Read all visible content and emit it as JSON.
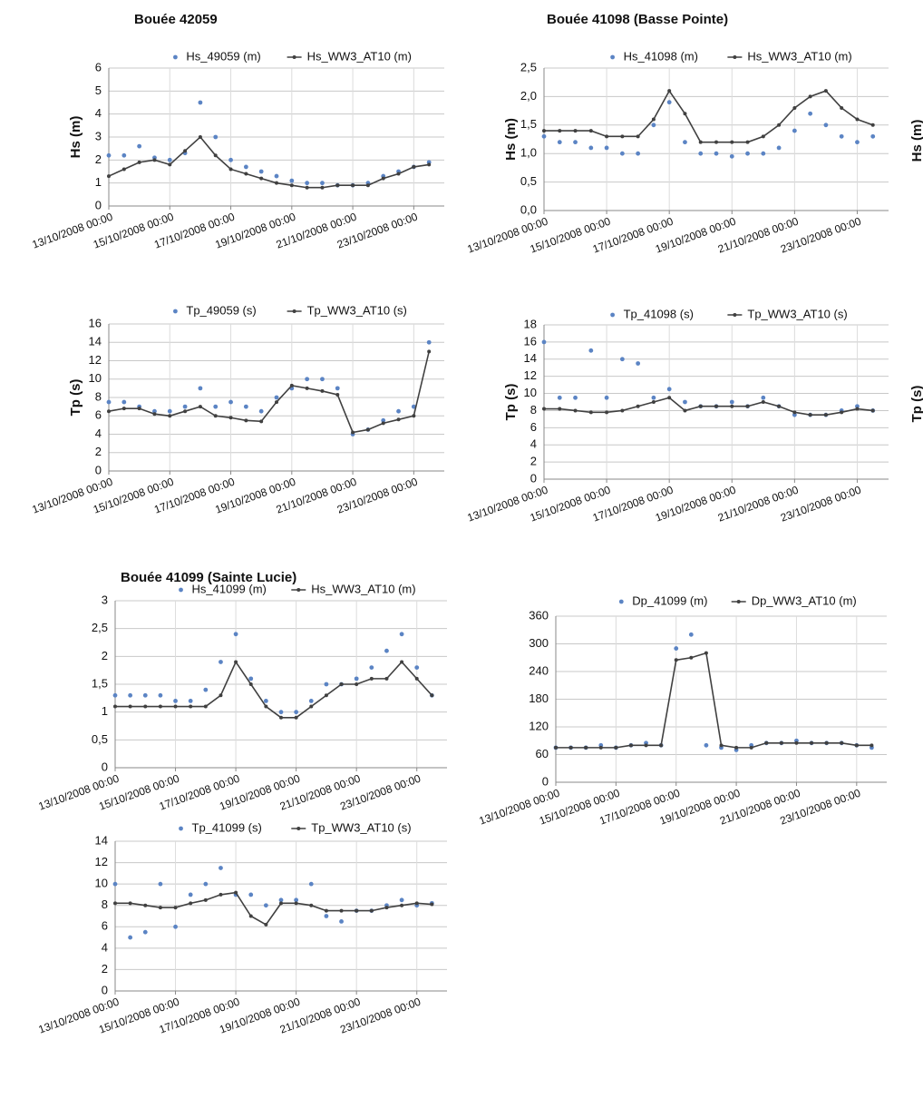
{
  "chart_data": [
    {
      "type": "line",
      "title": "Bouée 42059",
      "ylabel": "Hs (m)",
      "x": [
        "13/10/2008 00:00",
        "13/10/2008 12:00",
        "14/10/2008 00:00",
        "14/10/2008 12:00",
        "15/10/2008 00:00",
        "15/10/2008 12:00",
        "16/10/2008 00:00",
        "16/10/2008 12:00",
        "17/10/2008 00:00",
        "17/10/2008 12:00",
        "18/10/2008 00:00",
        "18/10/2008 12:00",
        "19/10/2008 00:00",
        "19/10/2008 12:00",
        "20/10/2008 00:00",
        "20/10/2008 12:00",
        "21/10/2008 00:00",
        "21/10/2008 12:00",
        "22/10/2008 00:00",
        "22/10/2008 12:00",
        "23/10/2008 00:00",
        "23/10/2008 12:00"
      ],
      "series": [
        {
          "name": "Hs_49059 (m)",
          "color": "#5b84c4",
          "line": false,
          "values": [
            2.2,
            2.2,
            2.6,
            2.1,
            2.0,
            2.3,
            4.5,
            3.0,
            2.0,
            1.7,
            1.5,
            1.3,
            1.1,
            1.0,
            1.0,
            0.9,
            0.9,
            1.0,
            1.3,
            1.5,
            1.7,
            1.9
          ]
        },
        {
          "name": "Hs_WW3_AT10 (m)",
          "color": "#404040",
          "line": true,
          "values": [
            1.3,
            1.6,
            1.9,
            2.0,
            1.8,
            2.4,
            3.0,
            2.2,
            1.6,
            1.4,
            1.2,
            1.0,
            0.9,
            0.8,
            0.8,
            0.9,
            0.9,
            0.9,
            1.2,
            1.4,
            1.7,
            1.8
          ]
        }
      ],
      "xlim": [
        "13/10/2008 00:00",
        "24/10/2008 00:00"
      ],
      "xticks": [
        "13/10/2008 00:00",
        "15/10/2008 00:00",
        "17/10/2008 00:00",
        "19/10/2008 00:00",
        "21/10/2008 00:00",
        "23/10/2008 00:00"
      ],
      "ylim": [
        0,
        6
      ],
      "yticks": [
        0,
        1,
        2,
        3,
        4,
        5,
        6
      ],
      "grid": true
    },
    {
      "type": "line",
      "title": "Bouée 41098 (Basse Pointe)",
      "ylabel": "Hs (m)",
      "x": [
        "13/10/2008 00:00",
        "13/10/2008 12:00",
        "14/10/2008 00:00",
        "14/10/2008 12:00",
        "15/10/2008 00:00",
        "15/10/2008 12:00",
        "16/10/2008 00:00",
        "16/10/2008 12:00",
        "17/10/2008 00:00",
        "17/10/2008 12:00",
        "18/10/2008 00:00",
        "18/10/2008 12:00",
        "19/10/2008 00:00",
        "19/10/2008 12:00",
        "20/10/2008 00:00",
        "20/10/2008 12:00",
        "21/10/2008 00:00",
        "21/10/2008 12:00",
        "22/10/2008 00:00",
        "22/10/2008 12:00",
        "23/10/2008 00:00",
        "23/10/2008 12:00"
      ],
      "series": [
        {
          "name": "Hs_41098 (m)",
          "color": "#5b84c4",
          "line": false,
          "values": [
            1.3,
            1.2,
            1.2,
            1.1,
            1.1,
            1.0,
            1.0,
            1.5,
            1.9,
            1.2,
            1.0,
            1.0,
            0.95,
            1.0,
            1.0,
            1.1,
            1.4,
            1.7,
            1.5,
            1.3,
            1.2,
            1.3
          ]
        },
        {
          "name": "Hs_WW3_AT10 (m)",
          "color": "#404040",
          "line": true,
          "values": [
            1.4,
            1.4,
            1.4,
            1.4,
            1.3,
            1.3,
            1.3,
            1.6,
            2.1,
            1.7,
            1.2,
            1.2,
            1.2,
            1.2,
            1.3,
            1.5,
            1.8,
            2.0,
            2.1,
            1.8,
            1.6,
            1.5
          ]
        }
      ],
      "xlim": [
        "13/10/2008 00:00",
        "24/10/2008 00:00"
      ],
      "xticks": [
        "13/10/2008 00:00",
        "15/10/2008 00:00",
        "17/10/2008 00:00",
        "19/10/2008 00:00",
        "21/10/2008 00:00",
        "23/10/2008 00:00"
      ],
      "ylim": [
        0,
        2.5
      ],
      "yticks": [
        {
          "value": 0,
          "label": "0,0"
        },
        {
          "value": 0.5,
          "label": "0,5"
        },
        {
          "value": 1,
          "label": "1,0"
        },
        {
          "value": 1.5,
          "label": "1,5"
        },
        {
          "value": 2,
          "label": "2,0"
        },
        {
          "value": 2.5,
          "label": "2,5"
        }
      ],
      "grid": true
    },
    {
      "type": "line",
      "ylabel": "Tp (s)",
      "x": [
        "13/10/2008 00:00",
        "13/10/2008 12:00",
        "14/10/2008 00:00",
        "14/10/2008 12:00",
        "15/10/2008 00:00",
        "15/10/2008 12:00",
        "16/10/2008 00:00",
        "16/10/2008 12:00",
        "17/10/2008 00:00",
        "17/10/2008 12:00",
        "18/10/2008 00:00",
        "18/10/2008 12:00",
        "19/10/2008 00:00",
        "19/10/2008 12:00",
        "20/10/2008 00:00",
        "20/10/2008 12:00",
        "21/10/2008 00:00",
        "21/10/2008 12:00",
        "22/10/2008 00:00",
        "22/10/2008 12:00",
        "23/10/2008 00:00",
        "23/10/2008 12:00"
      ],
      "series": [
        {
          "name": "Tp_49059 (s)",
          "color": "#5b84c4",
          "line": false,
          "values": [
            7.5,
            7.5,
            7,
            6.5,
            6.5,
            7,
            9,
            7,
            7.5,
            7,
            6.5,
            8,
            9,
            10,
            10,
            9,
            4,
            4.5,
            5.5,
            6.5,
            7,
            14
          ]
        },
        {
          "name": "Tp_WW3_AT10 (s)",
          "color": "#404040",
          "line": true,
          "values": [
            6.5,
            6.8,
            6.8,
            6.2,
            6,
            6.5,
            7,
            6,
            5.8,
            5.5,
            5.4,
            7.5,
            9.3,
            9,
            8.7,
            8.3,
            4.2,
            4.5,
            5.2,
            5.6,
            6,
            13
          ]
        }
      ],
      "xlim": [
        "13/10/2008 00:00",
        "24/10/2008 00:00"
      ],
      "xticks": [
        "13/10/2008 00:00",
        "15/10/2008 00:00",
        "17/10/2008 00:00",
        "19/10/2008 00:00",
        "21/10/2008 00:00",
        "23/10/2008 00:00"
      ],
      "ylim": [
        0,
        16
      ],
      "yticks": [
        0,
        2,
        4,
        6,
        8,
        10,
        12,
        14,
        16
      ],
      "grid": true
    },
    {
      "type": "line",
      "ylabel": "Tp (s)",
      "x": [
        "13/10/2008 00:00",
        "13/10/2008 12:00",
        "14/10/2008 00:00",
        "14/10/2008 12:00",
        "15/10/2008 00:00",
        "15/10/2008 12:00",
        "16/10/2008 00:00",
        "16/10/2008 12:00",
        "17/10/2008 00:00",
        "17/10/2008 12:00",
        "18/10/2008 00:00",
        "18/10/2008 12:00",
        "19/10/2008 00:00",
        "19/10/2008 12:00",
        "20/10/2008 00:00",
        "20/10/2008 12:00",
        "21/10/2008 00:00",
        "21/10/2008 12:00",
        "22/10/2008 00:00",
        "22/10/2008 12:00",
        "23/10/2008 00:00",
        "23/10/2008 12:00"
      ],
      "series": [
        {
          "name": "Tp_41098 (s)",
          "color": "#5b84c4",
          "line": false,
          "values": [
            16,
            9.5,
            9.5,
            15,
            9.5,
            14,
            13.5,
            9.5,
            10.5,
            9,
            8.5,
            8.5,
            9,
            8.5,
            9.5,
            8.5,
            7.5,
            7.5,
            7.5,
            8,
            8.5,
            8
          ]
        },
        {
          "name": "Tp_WW3_AT10 (s)",
          "color": "#404040",
          "line": true,
          "values": [
            8.2,
            8.2,
            8.0,
            7.8,
            7.8,
            8,
            8.5,
            9,
            9.5,
            8,
            8.5,
            8.5,
            8.5,
            8.5,
            9,
            8.5,
            7.8,
            7.5,
            7.5,
            7.8,
            8.2,
            8
          ]
        }
      ],
      "xlim": [
        "13/10/2008 00:00",
        "24/10/2008 00:00"
      ],
      "xticks": [
        "13/10/2008 00:00",
        "15/10/2008 00:00",
        "17/10/2008 00:00",
        "19/10/2008 00:00",
        "21/10/2008 00:00",
        "23/10/2008 00:00"
      ],
      "ylim": [
        0,
        18
      ],
      "yticks": [
        0,
        2,
        4,
        6,
        8,
        10,
        12,
        14,
        16,
        18
      ],
      "grid": true
    },
    {
      "type": "line",
      "title": "Bouée 41099 (Sainte Lucie)",
      "x": [
        "13/10/2008 00:00",
        "13/10/2008 12:00",
        "14/10/2008 00:00",
        "14/10/2008 12:00",
        "15/10/2008 00:00",
        "15/10/2008 12:00",
        "16/10/2008 00:00",
        "16/10/2008 12:00",
        "17/10/2008 00:00",
        "17/10/2008 12:00",
        "18/10/2008 00:00",
        "18/10/2008 12:00",
        "19/10/2008 00:00",
        "19/10/2008 12:00",
        "20/10/2008 00:00",
        "20/10/2008 12:00",
        "21/10/2008 00:00",
        "21/10/2008 12:00",
        "22/10/2008 00:00",
        "22/10/2008 12:00",
        "23/10/2008 00:00",
        "23/10/2008 12:00"
      ],
      "series": [
        {
          "name": "Hs_41099 (m)",
          "color": "#5b84c4",
          "line": false,
          "values": [
            1.3,
            1.3,
            1.3,
            1.3,
            1.2,
            1.2,
            1.4,
            1.9,
            2.4,
            1.6,
            1.2,
            1.0,
            1.0,
            1.2,
            1.5,
            1.5,
            1.6,
            1.8,
            2.1,
            2.4,
            1.8,
            1.3
          ]
        },
        {
          "name": "Hs_WW3_AT10 (m)",
          "color": "#404040",
          "line": true,
          "values": [
            1.1,
            1.1,
            1.1,
            1.1,
            1.1,
            1.1,
            1.1,
            1.3,
            1.9,
            1.5,
            1.1,
            0.9,
            0.9,
            1.1,
            1.3,
            1.5,
            1.5,
            1.6,
            1.6,
            1.9,
            1.6,
            1.3
          ]
        }
      ],
      "xlim": [
        "13/10/2008 00:00",
        "24/10/2008 00:00"
      ],
      "xticks": [
        "13/10/2008 00:00",
        "15/10/2008 00:00",
        "17/10/2008 00:00",
        "19/10/2008 00:00",
        "21/10/2008 00:00",
        "23/10/2008 00:00"
      ],
      "ylim": [
        0,
        3
      ],
      "yticks": [
        0,
        {
          "value": 0.5,
          "label": "0,5"
        },
        1,
        {
          "value": 1.5,
          "label": "1,5"
        },
        2,
        {
          "value": 2.5,
          "label": "2,5"
        },
        3
      ],
      "grid": true
    },
    {
      "type": "line",
      "x": [
        "13/10/2008 00:00",
        "13/10/2008 12:00",
        "14/10/2008 00:00",
        "14/10/2008 12:00",
        "15/10/2008 00:00",
        "15/10/2008 12:00",
        "16/10/2008 00:00",
        "16/10/2008 12:00",
        "17/10/2008 00:00",
        "17/10/2008 12:00",
        "18/10/2008 00:00",
        "18/10/2008 12:00",
        "19/10/2008 00:00",
        "19/10/2008 12:00",
        "20/10/2008 00:00",
        "20/10/2008 12:00",
        "21/10/2008 00:00",
        "21/10/2008 12:00",
        "22/10/2008 00:00",
        "22/10/2008 12:00",
        "23/10/2008 00:00",
        "23/10/2008 12:00"
      ],
      "series": [
        {
          "name": "Dp_41099 (m)",
          "color": "#5b84c4",
          "line": false,
          "values": [
            75,
            75,
            75,
            80,
            75,
            80,
            85,
            80,
            290,
            320,
            80,
            75,
            70,
            80,
            85,
            85,
            90,
            85,
            85,
            85,
            80,
            75
          ]
        },
        {
          "name": "Dp_WW3_AT10 (m)",
          "color": "#404040",
          "line": true,
          "values": [
            75,
            75,
            75,
            75,
            75,
            80,
            80,
            80,
            265,
            270,
            280,
            80,
            75,
            75,
            85,
            85,
            85,
            85,
            85,
            85,
            80,
            80
          ]
        }
      ],
      "xlim": [
        "13/10/2008 00:00",
        "24/10/2008 00:00"
      ],
      "xticks": [
        "13/10/2008 00:00",
        "15/10/2008 00:00",
        "17/10/2008 00:00",
        "19/10/2008 00:00",
        "21/10/2008 00:00",
        "23/10/2008 00:00"
      ],
      "ylim": [
        0,
        360
      ],
      "yticks": [
        0,
        60,
        120,
        180,
        240,
        300,
        360
      ],
      "grid": true
    },
    {
      "type": "line",
      "x": [
        "13/10/2008 00:00",
        "13/10/2008 12:00",
        "14/10/2008 00:00",
        "14/10/2008 12:00",
        "15/10/2008 00:00",
        "15/10/2008 12:00",
        "16/10/2008 00:00",
        "16/10/2008 12:00",
        "17/10/2008 00:00",
        "17/10/2008 12:00",
        "18/10/2008 00:00",
        "18/10/2008 12:00",
        "19/10/2008 00:00",
        "19/10/2008 12:00",
        "20/10/2008 00:00",
        "20/10/2008 12:00",
        "21/10/2008 00:00",
        "21/10/2008 12:00",
        "22/10/2008 00:00",
        "22/10/2008 12:00",
        "23/10/2008 00:00",
        "23/10/2008 12:00"
      ],
      "series": [
        {
          "name": "Tp_41099 (s)",
          "color": "#5b84c4",
          "line": false,
          "values": [
            10,
            5,
            5.5,
            10,
            6,
            9,
            10,
            11.5,
            9,
            9,
            8,
            8.5,
            8.5,
            10,
            7,
            6.5,
            7.5,
            7.5,
            8,
            8.5,
            8,
            8.2
          ]
        },
        {
          "name": "Tp_WW3_AT10 (s)",
          "color": "#404040",
          "line": true,
          "values": [
            8.2,
            8.2,
            8.0,
            7.8,
            7.8,
            8.2,
            8.5,
            9,
            9.2,
            7,
            6.2,
            8.2,
            8.2,
            8.0,
            7.5,
            7.5,
            7.5,
            7.5,
            7.8,
            8.0,
            8.2,
            8.1
          ]
        }
      ],
      "xlim": [
        "13/10/2008 00:00",
        "24/10/2008 00:00"
      ],
      "xticks": [
        "13/10/2008 00:00",
        "15/10/2008 00:00",
        "17/10/2008 00:00",
        "19/10/2008 00:00",
        "21/10/2008 00:00",
        "23/10/2008 00:00"
      ],
      "ylim": [
        0,
        14
      ],
      "yticks": [
        0,
        2,
        4,
        6,
        8,
        10,
        12,
        14
      ],
      "grid": true
    }
  ],
  "edge_labels": [
    "Hs (m)",
    "Tp (s)"
  ]
}
